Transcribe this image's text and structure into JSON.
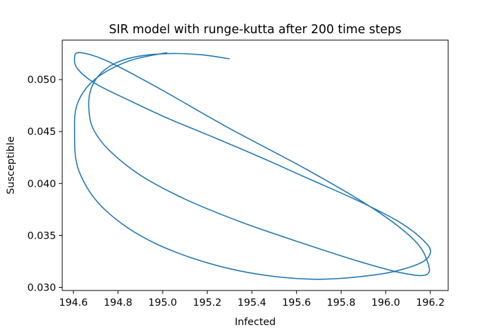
{
  "chart_data": {
    "type": "line",
    "title": "SIR model with runge-kutta after 200 time steps",
    "xlabel": "Infected",
    "ylabel": "Susceptible",
    "xlim": [
      194.55,
      196.28
    ],
    "ylim": [
      0.0297,
      0.0538
    ],
    "xticks": [
      194.6,
      194.8,
      195.0,
      195.2,
      195.4,
      195.6,
      195.8,
      196.0,
      196.2
    ],
    "xtick_labels": [
      "194.6",
      "194.8",
      "195.0",
      "195.2",
      "195.4",
      "195.6",
      "195.8",
      "196.0",
      "196.2"
    ],
    "yticks": [
      0.03,
      0.035,
      0.04,
      0.045,
      0.05
    ],
    "ytick_labels": [
      "0.030",
      "0.035",
      "0.040",
      "0.045",
      "0.050"
    ],
    "grid": false,
    "series": [
      {
        "color": "#1f77b4",
        "x": [
          195.3,
          195.17,
          195.02,
          194.88,
          194.78,
          194.71,
          194.675,
          194.67,
          194.69,
          194.76,
          194.9,
          195.1,
          195.35,
          195.62,
          195.88,
          196.07,
          196.18,
          196.19,
          196.13,
          195.95,
          195.65,
          195.3,
          194.98,
          194.75,
          194.63,
          194.605,
          194.62,
          194.7,
          194.85,
          195.02,
          195.2,
          195.42,
          195.65,
          195.88,
          196.06,
          196.17,
          196.2,
          196.14,
          195.95,
          195.65,
          195.3,
          194.97,
          194.74,
          194.625,
          194.605,
          194.62,
          194.7,
          194.85,
          195.02
        ],
        "y": [
          0.052,
          0.0524,
          0.0525,
          0.0522,
          0.0515,
          0.0503,
          0.0488,
          0.047,
          0.0452,
          0.0432,
          0.0408,
          0.0385,
          0.0363,
          0.0343,
          0.0325,
          0.0314,
          0.0312,
          0.0323,
          0.0345,
          0.0375,
          0.0413,
          0.0453,
          0.0492,
          0.0518,
          0.0526,
          0.0521,
          0.051,
          0.0496,
          0.048,
          0.0463,
          0.0447,
          0.0427,
          0.0405,
          0.0383,
          0.0363,
          0.0345,
          0.0333,
          0.0322,
          0.0312,
          0.0308,
          0.0318,
          0.0342,
          0.0375,
          0.0412,
          0.045,
          0.0478,
          0.0501,
          0.0518,
          0.0526
        ]
      }
    ]
  }
}
